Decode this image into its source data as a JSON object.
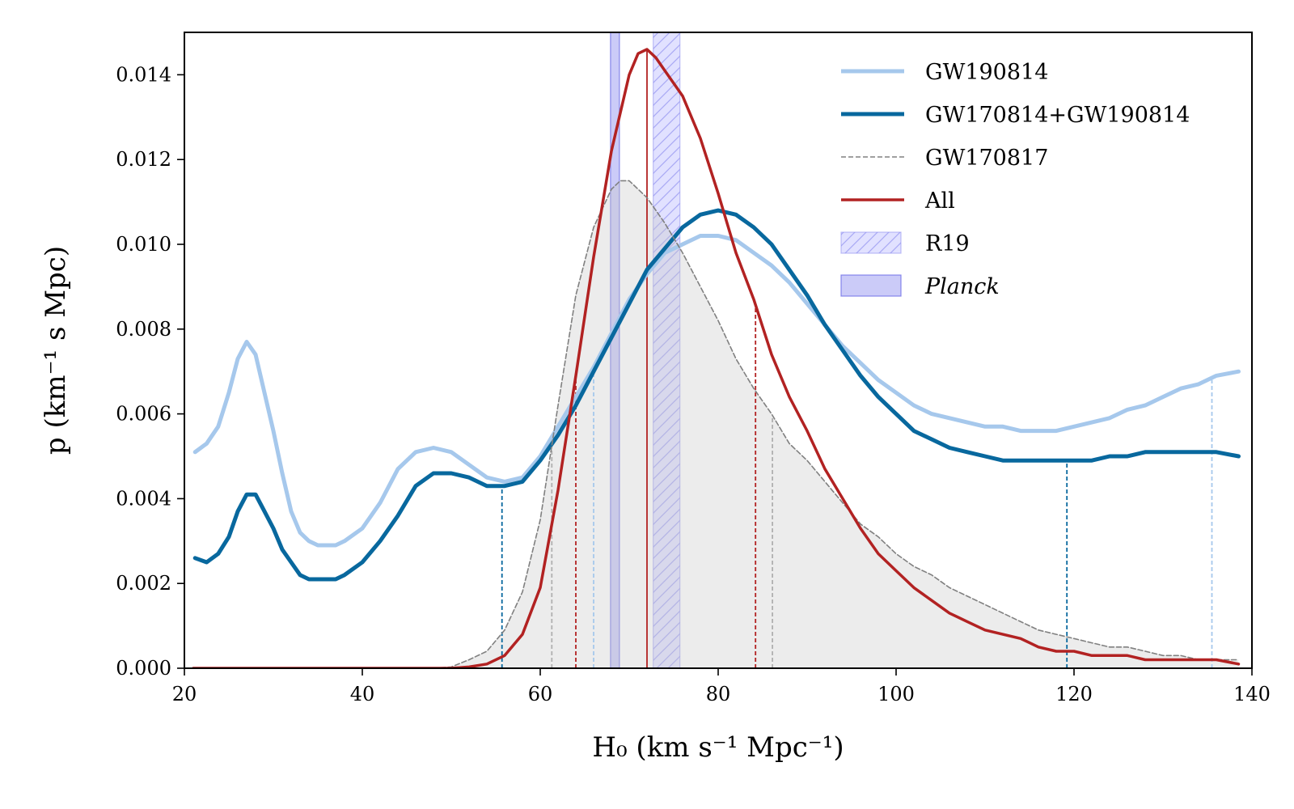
{
  "chart_data": {
    "type": "line",
    "xlabel": "H₀ (km s⁻¹ Mpc⁻¹)",
    "ylabel": "p (km⁻¹ s Mpc)",
    "xlim": [
      20,
      140
    ],
    "ylim": [
      0,
      0.015
    ],
    "x_ticks": [
      "20",
      "40",
      "60",
      "80",
      "100",
      "120",
      "140"
    ],
    "y_ticks": [
      "0.000",
      "0.002",
      "0.004",
      "0.006",
      "0.008",
      "0.010",
      "0.012",
      "0.014"
    ],
    "legend_position": "top-right",
    "legend": [
      {
        "label": "GW190814",
        "kind": "line",
        "color": "#a6c8ec",
        "dashed": false
      },
      {
        "label": "GW170814+GW190814",
        "kind": "line",
        "color": "#08689e",
        "dashed": false
      },
      {
        "label": "GW170817",
        "kind": "line",
        "color": "#808080",
        "dashed": true
      },
      {
        "label": "All",
        "kind": "line",
        "color": "#b22222",
        "dashed": false
      },
      {
        "label": "R19",
        "kind": "band",
        "color": "#c8c8ff",
        "hatched": true
      },
      {
        "label": "Planck",
        "kind": "band",
        "color": "#8c8cf0",
        "hatched": false
      }
    ],
    "series": [
      {
        "name": "GW190814",
        "color": "#a6c8ec",
        "x": [
          21.2,
          22.5,
          23.8,
          25,
          26,
          27,
          28,
          29,
          30,
          31,
          32,
          33,
          34,
          35,
          36,
          37,
          38,
          40,
          42,
          44,
          46,
          48,
          50,
          52,
          54,
          56,
          58,
          60,
          62,
          64,
          66,
          68,
          70,
          72,
          74,
          76,
          78,
          80,
          82,
          84,
          86,
          88,
          90,
          92,
          94,
          96,
          98,
          100,
          102,
          104,
          106,
          108,
          110,
          112,
          114,
          116,
          118,
          120,
          122,
          124,
          126,
          128,
          130,
          132,
          134,
          136,
          138.5
        ],
        "values": [
          0.0051,
          0.0053,
          0.0057,
          0.0065,
          0.0073,
          0.0077,
          0.0074,
          0.0065,
          0.0056,
          0.0046,
          0.0037,
          0.0032,
          0.003,
          0.0029,
          0.0029,
          0.0029,
          0.003,
          0.0033,
          0.0039,
          0.0047,
          0.0051,
          0.0052,
          0.0051,
          0.0048,
          0.0045,
          0.0044,
          0.0045,
          0.005,
          0.0057,
          0.0064,
          0.0071,
          0.0079,
          0.0087,
          0.0093,
          0.0098,
          0.01,
          0.0102,
          0.0102,
          0.0101,
          0.0098,
          0.0095,
          0.0091,
          0.0086,
          0.0081,
          0.0076,
          0.0072,
          0.0068,
          0.0065,
          0.0062,
          0.006,
          0.0059,
          0.0058,
          0.0057,
          0.0057,
          0.0056,
          0.0056,
          0.0056,
          0.0057,
          0.0058,
          0.0059,
          0.0061,
          0.0062,
          0.0064,
          0.0066,
          0.0067,
          0.0069,
          0.007
        ]
      },
      {
        "name": "GW170814+GW190814",
        "color": "#08689e",
        "x": [
          21.2,
          22.5,
          23.8,
          25,
          26,
          27,
          28,
          29,
          30,
          31,
          32,
          33,
          34,
          35,
          36,
          37,
          38,
          40,
          42,
          44,
          46,
          48,
          50,
          52,
          54,
          56,
          58,
          60,
          62,
          64,
          66,
          68,
          70,
          72,
          74,
          76,
          78,
          80,
          82,
          84,
          86,
          88,
          90,
          92,
          94,
          96,
          98,
          100,
          102,
          104,
          106,
          108,
          110,
          112,
          114,
          116,
          118,
          120,
          122,
          124,
          126,
          128,
          130,
          132,
          134,
          136,
          138.5
        ],
        "values": [
          0.0026,
          0.0025,
          0.0027,
          0.0031,
          0.0037,
          0.0041,
          0.0041,
          0.0037,
          0.0033,
          0.0028,
          0.0025,
          0.0022,
          0.0021,
          0.0021,
          0.0021,
          0.0021,
          0.0022,
          0.0025,
          0.003,
          0.0036,
          0.0043,
          0.0046,
          0.0046,
          0.0045,
          0.0043,
          0.0043,
          0.0044,
          0.0049,
          0.0055,
          0.0062,
          0.007,
          0.0078,
          0.0086,
          0.0094,
          0.0099,
          0.0104,
          0.0107,
          0.0108,
          0.0107,
          0.0104,
          0.01,
          0.0094,
          0.0088,
          0.0081,
          0.0075,
          0.0069,
          0.0064,
          0.006,
          0.0056,
          0.0054,
          0.0052,
          0.0051,
          0.005,
          0.0049,
          0.0049,
          0.0049,
          0.0049,
          0.0049,
          0.0049,
          0.005,
          0.005,
          0.0051,
          0.0051,
          0.0051,
          0.0051,
          0.0051,
          0.005
        ]
      },
      {
        "name": "GW170817",
        "color": "#808080",
        "x": [
          21,
          30,
          40,
          48,
          50,
          52,
          54,
          56,
          58,
          60,
          62,
          64,
          66,
          68,
          69,
          70,
          72,
          74,
          76,
          78,
          80,
          82,
          84,
          86,
          88,
          90,
          92,
          94,
          96,
          98,
          100,
          102,
          104,
          106,
          108,
          110,
          112,
          114,
          116,
          118,
          120,
          122,
          124,
          126,
          128,
          130,
          132,
          134,
          136,
          138.5
        ],
        "values": [
          0,
          0,
          0,
          0,
          3e-05,
          0.0002,
          0.0004,
          0.0009,
          0.0018,
          0.0035,
          0.0062,
          0.0088,
          0.0104,
          0.0113,
          0.0115,
          0.0115,
          0.0111,
          0.0105,
          0.0098,
          0.009,
          0.0082,
          0.0073,
          0.0066,
          0.006,
          0.0053,
          0.0049,
          0.0044,
          0.0039,
          0.0034,
          0.0031,
          0.0027,
          0.0024,
          0.0022,
          0.0019,
          0.0017,
          0.0015,
          0.0013,
          0.0011,
          0.0009,
          0.0008,
          0.0007,
          0.0006,
          0.0005,
          0.0005,
          0.0004,
          0.0003,
          0.0003,
          0.0002,
          0.0002,
          0.0002
        ]
      },
      {
        "name": "All",
        "color": "#b22222",
        "x": [
          21,
          30,
          40,
          50,
          52,
          54,
          56,
          58,
          60,
          62,
          64,
          66,
          68,
          70,
          71,
          72,
          73,
          74,
          76,
          78,
          80,
          82,
          84,
          86,
          88,
          90,
          92,
          94,
          96,
          98,
          100,
          102,
          104,
          106,
          108,
          110,
          112,
          114,
          116,
          118,
          120,
          122,
          124,
          126,
          128,
          130,
          132,
          134,
          136,
          138.5
        ],
        "values": [
          0,
          0,
          0,
          0,
          3e-05,
          0.0001,
          0.0003,
          0.0008,
          0.0019,
          0.0042,
          0.0069,
          0.0097,
          0.0122,
          0.014,
          0.0145,
          0.0146,
          0.0144,
          0.0141,
          0.0135,
          0.0125,
          0.0112,
          0.0098,
          0.0087,
          0.0074,
          0.0064,
          0.0056,
          0.0047,
          0.004,
          0.0033,
          0.0027,
          0.0023,
          0.0019,
          0.0016,
          0.0013,
          0.0011,
          0.0009,
          0.0008,
          0.0007,
          0.0005,
          0.0004,
          0.0004,
          0.0003,
          0.0003,
          0.0003,
          0.0002,
          0.0002,
          0.0002,
          0.0002,
          0.0002,
          0.0001
        ]
      }
    ],
    "bands": [
      {
        "name": "R19",
        "x_range": [
          72.7,
          75.7
        ],
        "color": "#c8c8ff",
        "hatched": true
      },
      {
        "name": "Planck",
        "x_range": [
          67.9,
          68.9
        ],
        "color": "#8c8cf0",
        "hatched": false
      }
    ],
    "vertical_lines": [
      {
        "series": "All",
        "x": 72.0,
        "y_top": 0.0146,
        "style": "solid",
        "color": "#b22222"
      },
      {
        "series": "All",
        "x": 64.0,
        "y_top": 0.0069,
        "style": "dashed",
        "color": "#b22222"
      },
      {
        "series": "All",
        "x": 84.2,
        "y_top": 0.0086,
        "style": "dashed",
        "color": "#b22222"
      },
      {
        "series": "GW170817",
        "x": 61.3,
        "y_top": 0.0052,
        "style": "dashed",
        "color": "#b0b0b0"
      },
      {
        "series": "GW170817",
        "x": 86.1,
        "y_top": 0.0059,
        "style": "dashed",
        "color": "#b0b0b0"
      },
      {
        "series": "GW190814",
        "x": 66.0,
        "y_top": 0.0071,
        "style": "dashed",
        "color": "#a6c8ec"
      },
      {
        "series": "GW190814",
        "x": 135.5,
        "y_top": 0.0068,
        "style": "dashed",
        "color": "#a6c8ec"
      },
      {
        "series": "GW170814+GW190814",
        "x": 55.7,
        "y_top": 0.0043,
        "style": "dashed",
        "color": "#08689e"
      },
      {
        "series": "GW170814+GW190814",
        "x": 119.2,
        "y_top": 0.0049,
        "style": "dashed",
        "color": "#08689e"
      }
    ],
    "filled_series": "GW170817",
    "grid": false
  }
}
